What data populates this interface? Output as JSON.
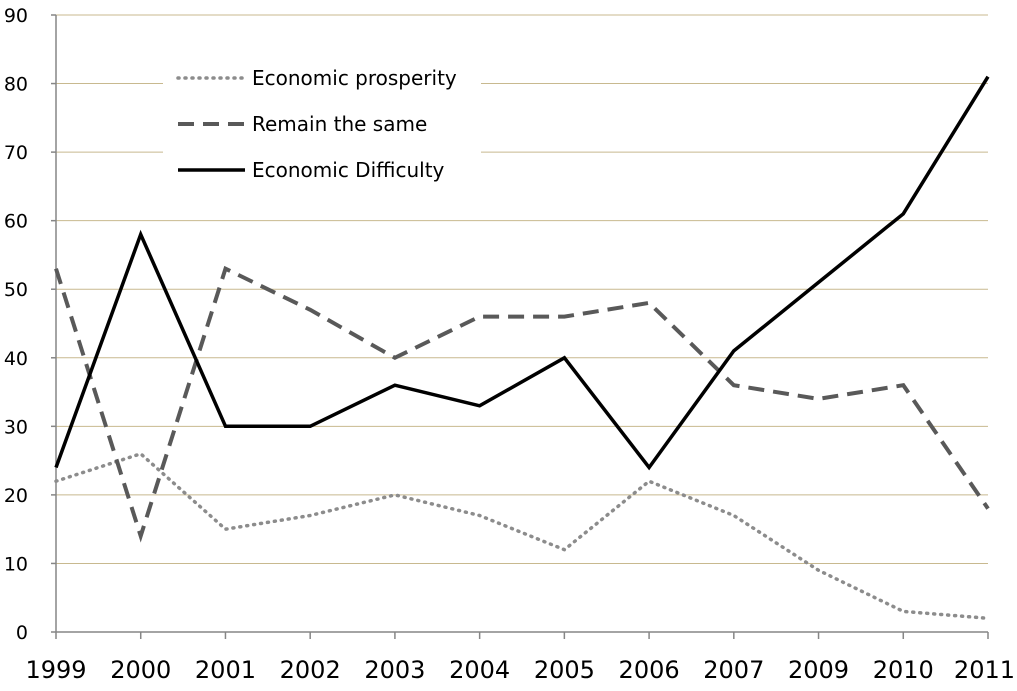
{
  "chart_data": {
    "type": "line",
    "title": "",
    "xlabel": "",
    "ylabel": "",
    "categories": [
      "1999",
      "2000",
      "2001",
      "2002",
      "2003",
      "2004",
      "2005",
      "2006",
      "2007",
      "2009",
      "2010",
      "2011"
    ],
    "ylim": [
      0,
      90
    ],
    "yticks": [
      0,
      10,
      20,
      30,
      40,
      50,
      60,
      70,
      80,
      90
    ],
    "grid": true,
    "legend_position": "top-left",
    "series": [
      {
        "name": "Economic prosperity",
        "style": "dotted",
        "color": "#8c8c8c",
        "values": [
          22,
          26,
          15,
          17,
          20,
          17,
          12,
          22,
          17,
          9,
          3,
          2
        ]
      },
      {
        "name": "Remain the same",
        "style": "dashed",
        "color": "#595959",
        "values": [
          53,
          14,
          53,
          47,
          40,
          46,
          46,
          48,
          36,
          34,
          36,
          18
        ]
      },
      {
        "name": "Economic Difficulty",
        "style": "solid",
        "color": "#000000",
        "values": [
          24,
          58,
          30,
          30,
          36,
          33,
          40,
          24,
          41,
          51,
          61,
          81
        ]
      }
    ],
    "colors": {
      "gridline": "#c8b98f",
      "axis": "#868686"
    }
  }
}
